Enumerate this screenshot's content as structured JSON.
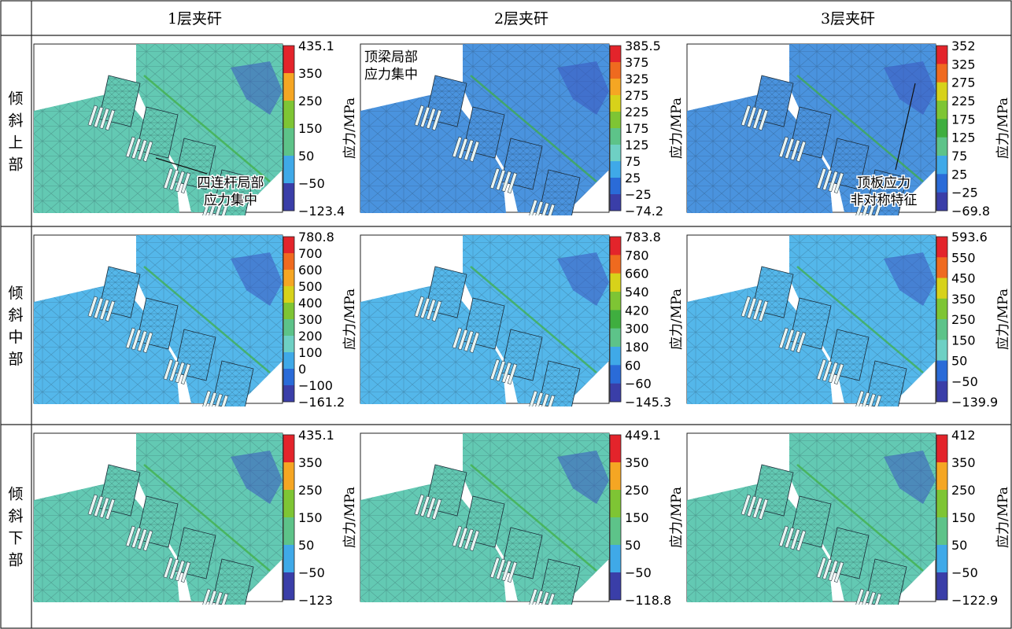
{
  "columns": [
    "1层夹矸",
    "2层夹矸",
    "3层夹矸"
  ],
  "rows": [
    "倾斜上部",
    "倾斜中部",
    "倾斜下部"
  ],
  "unit_label": "应力/MPa",
  "colors": {
    "scale": [
      "#e3242b",
      "#ef6a1f",
      "#f5a623",
      "#d7d21a",
      "#7ec534",
      "#3fae3f",
      "#5dc389",
      "#6ed0c4",
      "#3fa9e8",
      "#2a6bd8",
      "#3a3ea8"
    ],
    "teal_mesh": "#63c9b3",
    "blue_mesh": "#4a93de",
    "lightblue_mesh": "#54b7ea"
  },
  "panels": [
    [
      {
        "labels": [
          "435.1",
          "350",
          "250",
          "150",
          "50",
          "−50",
          "−123.4"
        ],
        "fill": "teal",
        "annotation": [
          "四连杆局部",
          "应力集中"
        ]
      },
      {
        "labels": [
          "385.5",
          "375",
          "325",
          "275",
          "225",
          "175",
          "125",
          "75",
          "25",
          "−25",
          "−74.2"
        ],
        "fill": "blue",
        "annotation": [
          "顶梁局部",
          "应力集中"
        ]
      },
      {
        "labels": [
          "352",
          "325",
          "275",
          "225",
          "175",
          "125",
          "75",
          "25",
          "−25",
          "−69.8"
        ],
        "fill": "blue",
        "annotation": [
          "顶板应力",
          "非对称特征"
        ]
      }
    ],
    [
      {
        "labels": [
          "780.8",
          "700",
          "600",
          "500",
          "400",
          "300",
          "200",
          "100",
          "0",
          "−100",
          "−161.2"
        ],
        "fill": "lightblue",
        "annotation": []
      },
      {
        "labels": [
          "783.8",
          "780",
          "660",
          "540",
          "420",
          "300",
          "180",
          "60",
          "−60",
          "−145.3"
        ],
        "fill": "lightblue",
        "annotation": []
      },
      {
        "labels": [
          "593.6",
          "550",
          "450",
          "350",
          "250",
          "150",
          "50",
          "−50",
          "−139.9"
        ],
        "fill": "lightblue",
        "annotation": []
      }
    ],
    [
      {
        "labels": [
          "435.1",
          "350",
          "250",
          "150",
          "50",
          "−50",
          "−123"
        ],
        "fill": "teal",
        "annotation": []
      },
      {
        "labels": [
          "449.1",
          "350",
          "250",
          "150",
          "50",
          "−50",
          "−118.8"
        ],
        "fill": "teal",
        "annotation": []
      },
      {
        "labels": [
          "412",
          "350",
          "250",
          "150",
          "50",
          "−50",
          "−122.9"
        ],
        "fill": "teal",
        "annotation": []
      }
    ]
  ]
}
